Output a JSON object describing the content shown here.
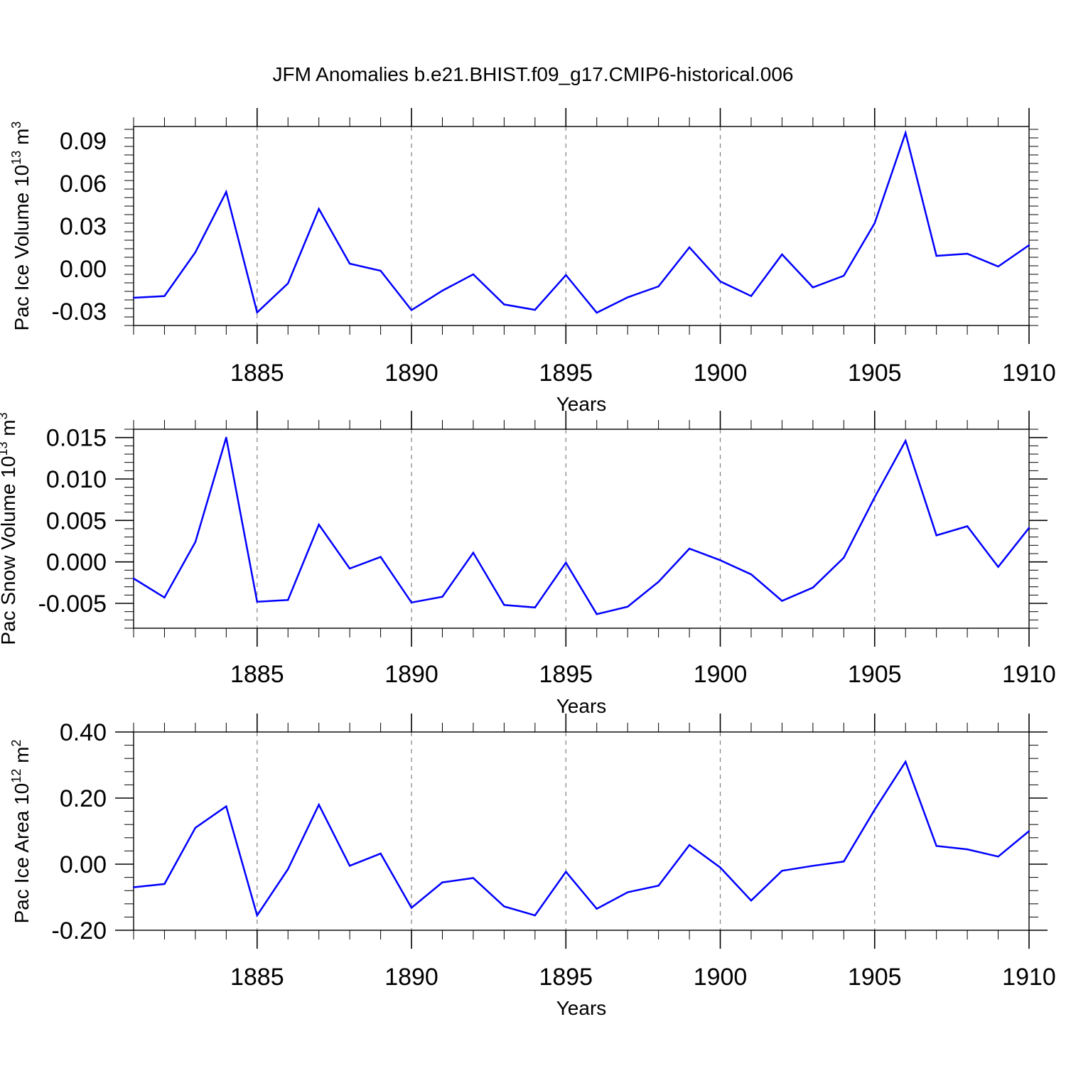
{
  "title": "JFM Anomalies b.e21.BHIST.f09_g17.CMIP6-historical.006",
  "line_color": "#0000ff",
  "chart_data": [
    {
      "type": "line",
      "ylabel_main": "Pac Ice Volume 10",
      "ylabel_exp": "13",
      "ylabel_unit": " m",
      "ylabel_unit_exp": "3",
      "xlabel": "Years",
      "xlim": [
        1881,
        1910
      ],
      "ylim": [
        -0.04,
        0.1
      ],
      "xticks": [
        1885,
        1890,
        1895,
        1900,
        1905,
        1910
      ],
      "xtick_labels": [
        "1885",
        "1890",
        "1895",
        "1900",
        "1905",
        "1910"
      ],
      "yticks": [
        -0.03,
        0.0,
        0.03,
        0.06,
        0.09
      ],
      "ytick_labels": [
        "-0.03",
        "0.00",
        "0.03",
        "0.06",
        "0.09"
      ],
      "x": [
        1881,
        1882,
        1883,
        1884,
        1885,
        1886,
        1887,
        1888,
        1889,
        1890,
        1891,
        1892,
        1893,
        1894,
        1895,
        1896,
        1897,
        1898,
        1899,
        1900,
        1901,
        1902,
        1903,
        1904,
        1905,
        1906,
        1907,
        1908,
        1909,
        1910
      ],
      "series": [
        {
          "name": "Pac Ice Volume",
          "values": [
            -0.0205,
            -0.0193,
            0.0115,
            0.054,
            -0.0308,
            -0.0104,
            0.042,
            0.0035,
            -0.0015,
            -0.0292,
            -0.0155,
            -0.004,
            -0.0252,
            -0.029,
            -0.0045,
            -0.031,
            -0.0202,
            -0.0125,
            0.015,
            -0.009,
            -0.0193,
            0.01,
            -0.0132,
            -0.005,
            0.032,
            0.0955,
            0.009,
            0.0105,
            0.0015,
            0.0165
          ]
        }
      ]
    },
    {
      "type": "line",
      "ylabel_main": "Pac Snow Volume 10",
      "ylabel_exp": "13",
      "ylabel_unit": " m",
      "ylabel_unit_exp": "3",
      "xlabel": "Years",
      "xlim": [
        1881,
        1910
      ],
      "ylim": [
        -0.008,
        0.016
      ],
      "xticks": [
        1885,
        1890,
        1895,
        1900,
        1905,
        1910
      ],
      "xtick_labels": [
        "1885",
        "1890",
        "1895",
        "1900",
        "1905",
        "1910"
      ],
      "yticks": [
        -0.005,
        0.0,
        0.005,
        0.01,
        0.015
      ],
      "ytick_labels": [
        "-0.005",
        "0.000",
        "0.005",
        "0.010",
        "0.015"
      ],
      "x": [
        1881,
        1882,
        1883,
        1884,
        1885,
        1886,
        1887,
        1888,
        1889,
        1890,
        1891,
        1892,
        1893,
        1894,
        1895,
        1896,
        1897,
        1898,
        1899,
        1900,
        1901,
        1902,
        1903,
        1904,
        1905,
        1906,
        1907,
        1908,
        1909,
        1910
      ],
      "series": [
        {
          "name": "Pac Snow Volume",
          "values": [
            -0.002,
            -0.0043,
            0.0024,
            0.015,
            -0.0048,
            -0.0046,
            0.0045,
            -0.0008,
            0.0006,
            -0.0049,
            -0.0042,
            0.0011,
            -0.0052,
            -0.0055,
            -0.0001,
            -0.0063,
            -0.0054,
            -0.0024,
            0.0016,
            0.0002,
            -0.0015,
            -0.0047,
            -0.0031,
            0.0005,
            0.0078,
            0.0146,
            0.0032,
            0.0043,
            -0.0006,
            0.0041
          ]
        }
      ]
    },
    {
      "type": "line",
      "ylabel_main": "Pac Ice Area 10",
      "ylabel_exp": "12",
      "ylabel_unit": " m",
      "ylabel_unit_exp": "2",
      "xlabel": "Years",
      "xlim": [
        1881,
        1910
      ],
      "ylim": [
        -0.2,
        0.4
      ],
      "xticks": [
        1885,
        1890,
        1895,
        1900,
        1905,
        1910
      ],
      "xtick_labels": [
        "1885",
        "1890",
        "1895",
        "1900",
        "1905",
        "1910"
      ],
      "yticks": [
        -0.2,
        0.0,
        0.2,
        0.4
      ],
      "ytick_labels": [
        "-0.20",
        "0.00",
        "0.20",
        "0.40"
      ],
      "x": [
        1881,
        1882,
        1883,
        1884,
        1885,
        1886,
        1887,
        1888,
        1889,
        1890,
        1891,
        1892,
        1893,
        1894,
        1895,
        1896,
        1897,
        1898,
        1899,
        1900,
        1901,
        1902,
        1903,
        1904,
        1905,
        1906,
        1907,
        1908,
        1909,
        1910
      ],
      "series": [
        {
          "name": "Pac Ice Area",
          "values": [
            -0.07,
            -0.06,
            0.11,
            0.175,
            -0.155,
            -0.015,
            0.18,
            -0.005,
            0.032,
            -0.132,
            -0.055,
            -0.042,
            -0.128,
            -0.155,
            -0.023,
            -0.135,
            -0.085,
            -0.065,
            0.058,
            -0.01,
            -0.11,
            -0.02,
            -0.005,
            0.008,
            0.165,
            0.31,
            0.055,
            0.045,
            0.023,
            0.1
          ]
        }
      ]
    }
  ]
}
